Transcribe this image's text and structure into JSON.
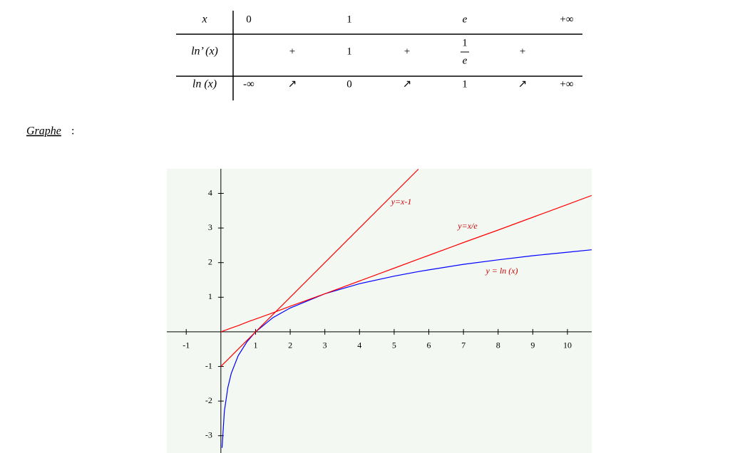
{
  "table": {
    "row_labels": [
      "x",
      "ln’ (x)",
      "ln (x)"
    ],
    "rows": [
      [
        "0",
        null,
        "1",
        null,
        "e",
        null,
        "+∞"
      ],
      [
        null,
        "+",
        "1",
        "+",
        {
          "numerator": "1",
          "denominator": "e"
        },
        "+",
        null
      ],
      [
        "-∞",
        "↗",
        "0",
        "↗",
        "1",
        "↗",
        "+∞"
      ]
    ]
  },
  "caption": "Graphe",
  "caption_suffix": ":",
  "chart_data": {
    "type": "line",
    "x": [
      0,
      0.035,
      0.1,
      0.2,
      0.3,
      0.5,
      0.75,
      1,
      1.5,
      2,
      3,
      4,
      5,
      5.7,
      6,
      7,
      8,
      9,
      10,
      10.7
    ],
    "series": [
      {
        "name": "y = ln (x)",
        "color": "#0000ff",
        "values": [
          null,
          -3.35,
          -2.3,
          -1.61,
          -1.2,
          -0.69,
          -0.29,
          0,
          0.41,
          0.69,
          1.1,
          1.39,
          1.61,
          1.74,
          1.79,
          1.95,
          2.08,
          2.2,
          2.3,
          2.37
        ]
      },
      {
        "name": "y=x/e",
        "color": "#ff0000",
        "values": [
          0,
          0.013,
          0.037,
          0.074,
          0.11,
          0.18,
          0.28,
          0.37,
          0.55,
          0.74,
          1.1,
          1.47,
          1.84,
          2.1,
          2.21,
          2.58,
          2.94,
          3.31,
          3.68,
          3.94
        ]
      },
      {
        "name": "y=x-1",
        "color": "#ff0000",
        "values": [
          -1,
          -0.965,
          -0.9,
          -0.8,
          -0.7,
          -0.5,
          -0.25,
          0,
          0.5,
          1,
          2,
          3,
          4,
          4.7,
          null,
          null,
          null,
          null,
          null,
          null
        ]
      }
    ],
    "xlim": [
      -1.56,
      10.7
    ],
    "ylim": [
      -3.5,
      4.71
    ],
    "xticks": [
      -1,
      1,
      2,
      3,
      4,
      5,
      6,
      7,
      8,
      9,
      10
    ],
    "yticks": [
      -3,
      -2,
      -1,
      1,
      2,
      3,
      4
    ]
  }
}
